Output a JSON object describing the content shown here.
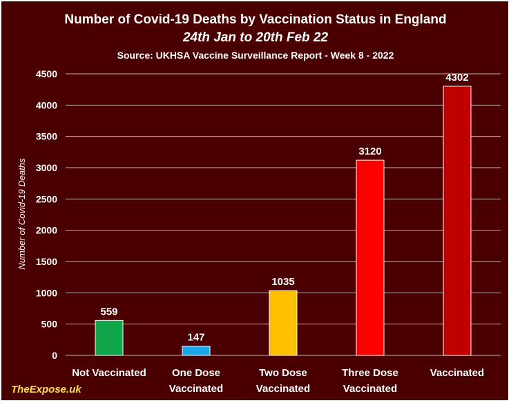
{
  "chart_data": {
    "type": "bar",
    "title": "Number of Covid-19 Deaths by Vaccination Status in England",
    "subtitle": "24th Jan to 20th Feb 22",
    "source": "Source: UKHSA Vaccine Surveillance Report - Week 8 - 2022",
    "watermark": "TheExpose.uk",
    "ylabel": "Number of Covid-19 Deaths",
    "xlabel": "",
    "ylim": [
      0,
      4500
    ],
    "yticks": [
      0,
      500,
      1000,
      1500,
      2000,
      2500,
      3000,
      3500,
      4000,
      4500
    ],
    "grid": true,
    "categories": [
      [
        "Not Vaccinated"
      ],
      [
        "One Dose",
        "Vaccinated"
      ],
      [
        "Two Dose",
        "Vaccinated"
      ],
      [
        "Three Dose",
        "Vaccinated"
      ],
      [
        "Vaccinated"
      ]
    ],
    "values": [
      559,
      147,
      1035,
      3120,
      4302
    ],
    "colors": [
      "#12a64a",
      "#1aa9e8",
      "#ffc000",
      "#ff0000",
      "#c00000"
    ]
  }
}
